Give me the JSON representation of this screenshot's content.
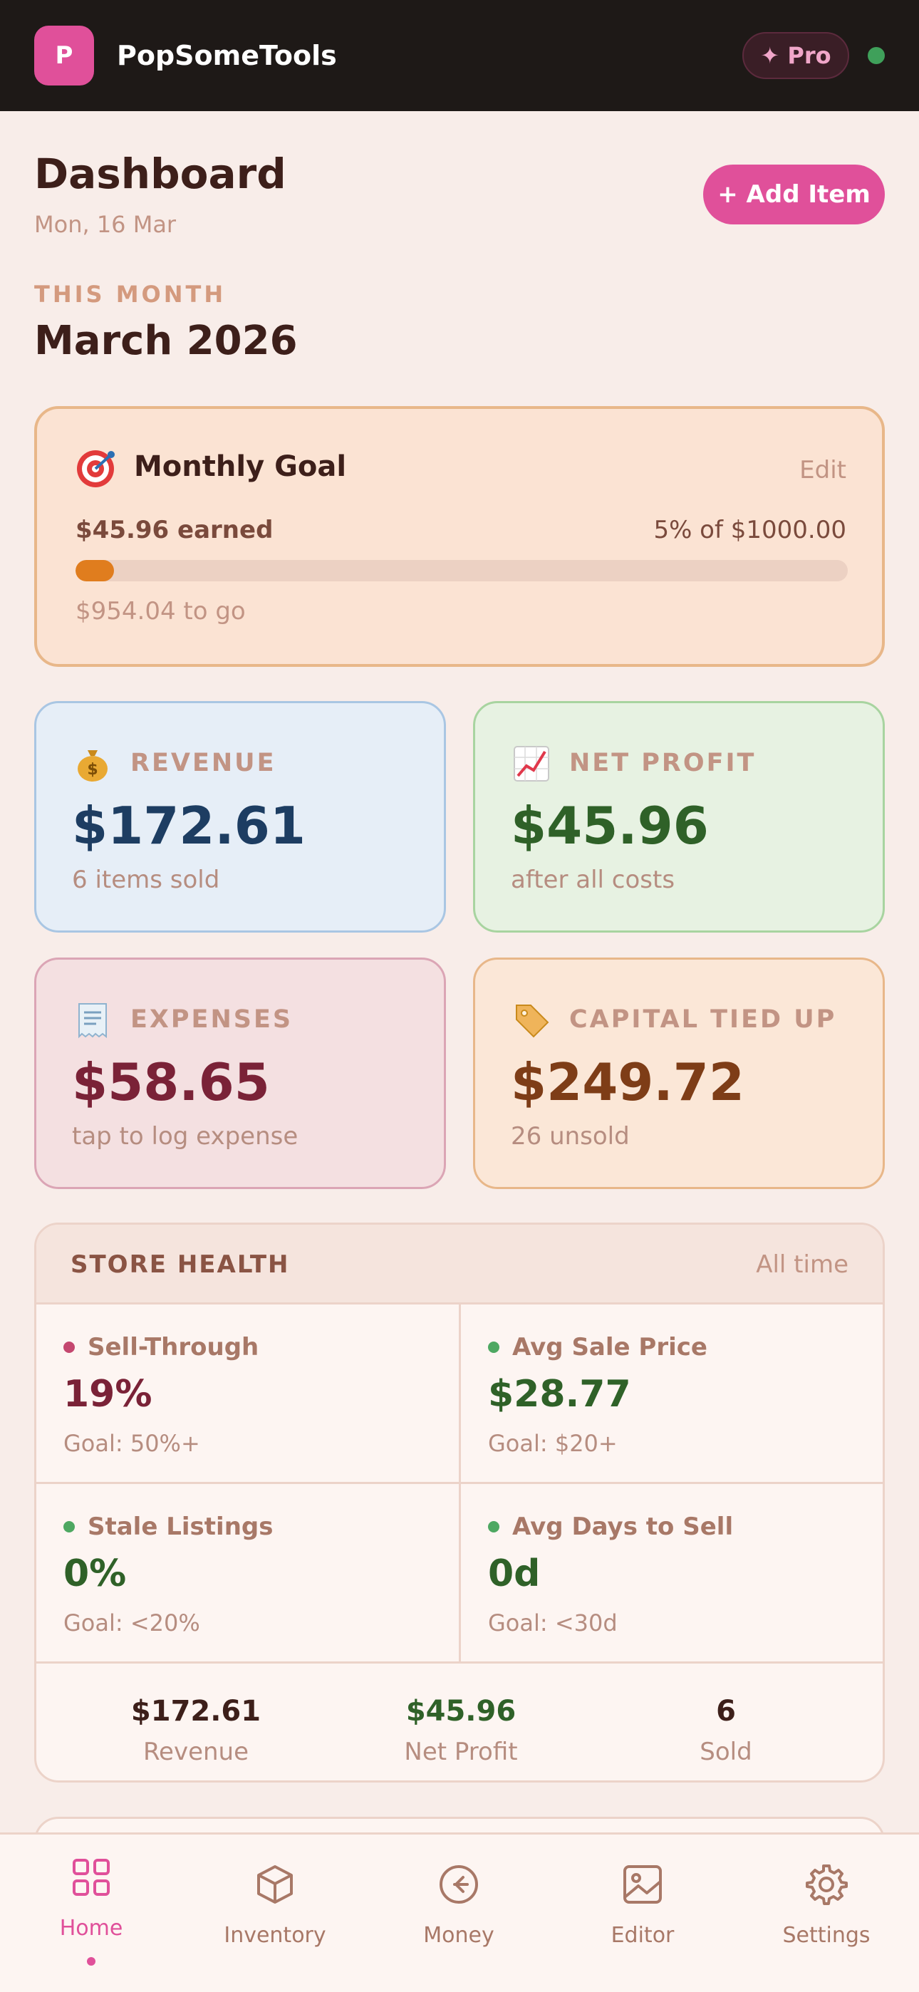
{
  "app": {
    "logo_letter": "P",
    "name": "PopSomeTools",
    "pro_label": "✦ Pro"
  },
  "header": {
    "title": "Dashboard",
    "date": "Mon, 16 Mar",
    "add_button": "+ Add Item",
    "period_label": "THIS MONTH",
    "period_title": "March 2026"
  },
  "goal": {
    "title": "Monthly Goal",
    "edit": "Edit",
    "earned": "$45.96 earned",
    "percent_text": "5% of $1000.00",
    "progress": 0.05,
    "to_go": "$954.04 to go"
  },
  "stats": {
    "revenue": {
      "label": "REVENUE",
      "value": "$172.61",
      "sub": "6 items sold"
    },
    "net_profit": {
      "label": "NET PROFIT",
      "value": "$45.96",
      "sub": "after all costs"
    },
    "expenses": {
      "label": "EXPENSES",
      "value": "$58.65",
      "sub": "tap to log expense"
    },
    "capital": {
      "label": "CAPITAL TIED UP",
      "value": "$249.72",
      "sub": "26 unsold"
    }
  },
  "store_health": {
    "title": "STORE HEALTH",
    "range": "All time",
    "metrics": [
      {
        "label": "Sell-Through",
        "value": "19%",
        "goal": "Goal: 50%+",
        "status_color": "#c4476f",
        "value_color": "#7a2237"
      },
      {
        "label": "Avg Sale Price",
        "value": "$28.77",
        "goal": "Goal: $20+",
        "status_color": "#4ea862",
        "value_color": "#2f6128"
      },
      {
        "label": "Stale Listings",
        "value": "0%",
        "goal": "Goal: <20%",
        "status_color": "#4ea862",
        "value_color": "#2f6128"
      },
      {
        "label": "Avg Days to Sell",
        "value": "0d",
        "goal": "Goal: <30d",
        "status_color": "#4ea862",
        "value_color": "#2f6128"
      }
    ],
    "summary": [
      {
        "value": "$172.61",
        "label": "Revenue"
      },
      {
        "value": "$45.96",
        "label": "Net Profit"
      },
      {
        "value": "6",
        "label": "Sold"
      }
    ]
  },
  "nav": {
    "items": [
      {
        "label": "Home",
        "icon": "grid-icon",
        "active": true
      },
      {
        "label": "Inventory",
        "icon": "box-icon",
        "active": false
      },
      {
        "label": "Money",
        "icon": "money-icon",
        "active": false
      },
      {
        "label": "Editor",
        "icon": "image-icon",
        "active": false
      },
      {
        "label": "Settings",
        "icon": "gear-icon",
        "active": false
      }
    ]
  },
  "colors": {
    "accent": "#e0509a",
    "header_bg": "#1e1917",
    "page_bg": "#f8ede9",
    "progress_fill": "#e07d1e"
  }
}
